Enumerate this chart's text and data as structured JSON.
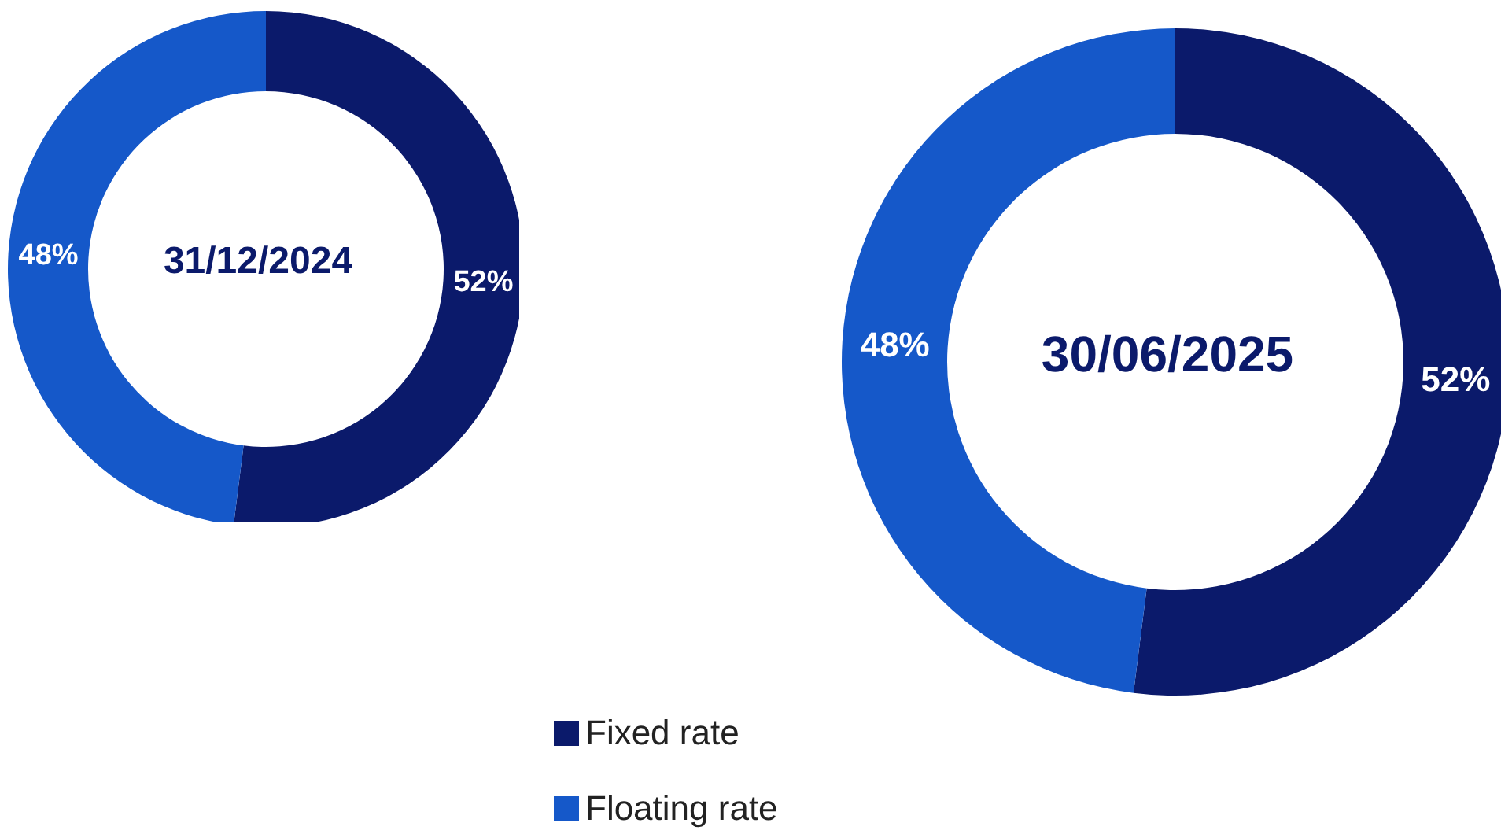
{
  "chart_data": [
    {
      "type": "donut",
      "title": "31/12/2024",
      "categories": [
        null,
        null
      ],
      "values": [
        52,
        48
      ],
      "colors": [
        "#0b1a6b",
        "#1558c9"
      ],
      "value_labels": [
        "52%",
        "48%"
      ],
      "legend": false
    },
    {
      "type": "donut",
      "title": "30/06/2025",
      "categories": [
        "Fixed rate",
        "Floating rate"
      ],
      "values": [
        52,
        48
      ],
      "colors": [
        "#0b1a6b",
        "#1558c9"
      ],
      "value_labels": [
        "52%",
        "48%"
      ],
      "legend": "bottom"
    }
  ]
}
